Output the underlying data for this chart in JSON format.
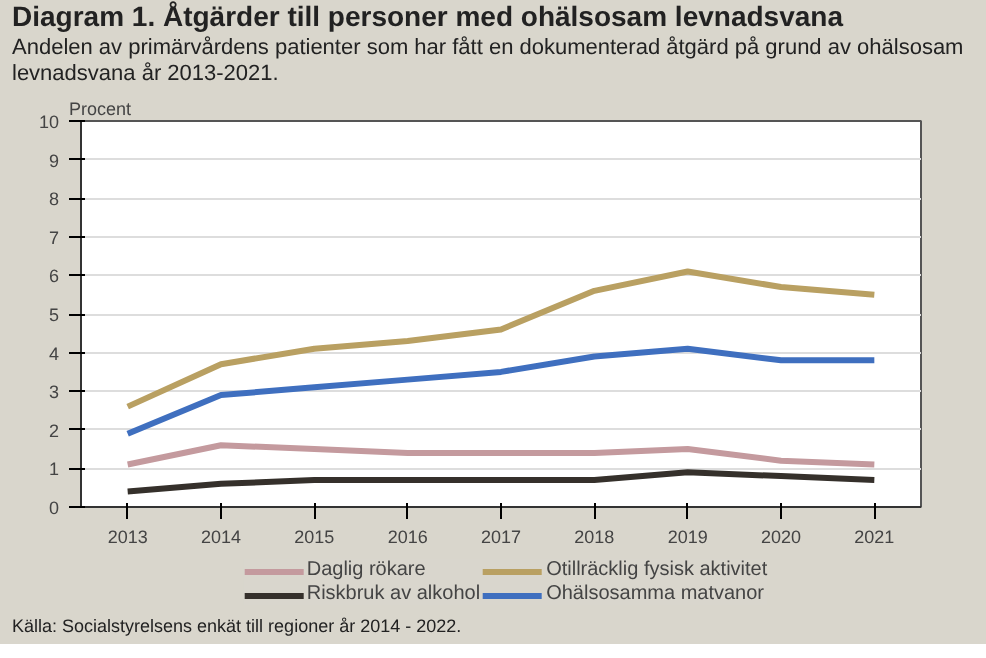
{
  "chart_data": {
    "type": "line",
    "title": "Diagram 1. Åtgärder till personer med ohälsosam levnadsvana",
    "subtitle": "Andelen av primärvårdens patienter som har fått en dokumenterad åtgärd på grund av ohälsosam levnadsvana år 2013-2021.",
    "ylabel": "Procent",
    "categories": [
      "2013",
      "2014",
      "2015",
      "2016",
      "2017",
      "2018",
      "2019",
      "2020",
      "2021"
    ],
    "series": [
      {
        "name": "Daglig rökare",
        "color": "#c49a9e",
        "values": [
          1.1,
          1.6,
          1.5,
          1.4,
          1.4,
          1.4,
          1.5,
          1.2,
          1.1
        ]
      },
      {
        "name": "Riskbruk av alkohol",
        "color": "#35302b",
        "values": [
          0.4,
          0.6,
          0.7,
          0.7,
          0.7,
          0.7,
          0.9,
          0.8,
          0.7
        ]
      },
      {
        "name": "Otillräcklig fysisk aktivitet",
        "color": "#b9a062",
        "values": [
          2.6,
          3.7,
          4.1,
          4.3,
          4.6,
          5.6,
          6.1,
          5.7,
          5.5
        ]
      },
      {
        "name": "Ohälsosamma matvanor",
        "color": "#3f6fbf",
        "values": [
          1.9,
          2.9,
          3.1,
          3.3,
          3.5,
          3.9,
          4.1,
          3.8,
          3.8
        ]
      }
    ],
    "ylim": [
      0,
      10
    ],
    "yticks": [
      0,
      1,
      2,
      3,
      4,
      5,
      6,
      7,
      8,
      9,
      10
    ],
    "grid": "y",
    "legend": "bottom",
    "line_style": "solid",
    "annotations": [
      "Källa: Socialstyrelsens enkät till regioner år 2014 - 2022."
    ]
  }
}
